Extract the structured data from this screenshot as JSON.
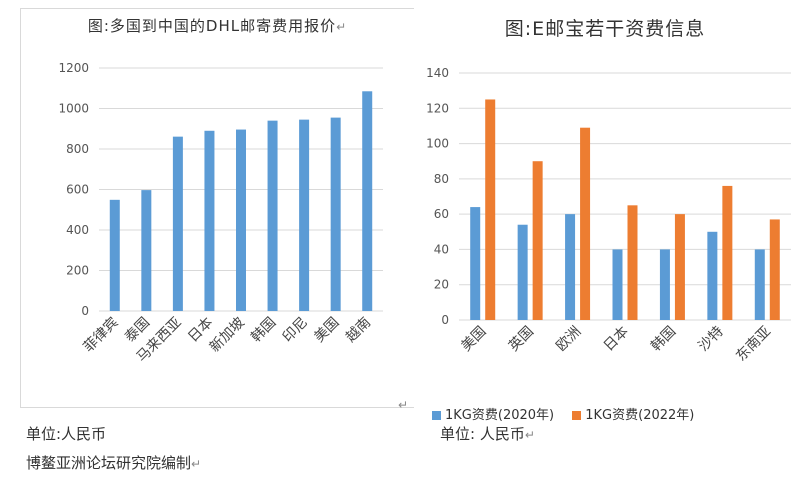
{
  "chart_data": [
    {
      "type": "bar",
      "title": "图:多国到中国的DHL邮寄费用报价",
      "categories": [
        "菲律宾",
        "泰国",
        "马来西亚",
        "日本",
        "新加坡",
        "韩国",
        "印尼",
        "美国",
        "越南"
      ],
      "series": [
        {
          "values": [
            549,
            597,
            861,
            890,
            896,
            940,
            945,
            955,
            1085
          ]
        }
      ],
      "ylim": [
        0,
        1200
      ],
      "yticks": [
        0,
        200,
        400,
        600,
        800,
        1000,
        1200
      ],
      "grid": true,
      "color": "#5b9bd5"
    },
    {
      "type": "bar",
      "title": "图:E邮宝若干资费信息",
      "categories": [
        "美国",
        "英国",
        "欧洲",
        "日本",
        "韩国",
        "沙特",
        "东南亚"
      ],
      "series": [
        {
          "name": "1KG资费(2020年)",
          "values": [
            64,
            54,
            60,
            40,
            40,
            50,
            40
          ],
          "color": "#5b9bd5"
        },
        {
          "name": "1KG资费(2022年)",
          "values": [
            125,
            90,
            109,
            65,
            60,
            76,
            57
          ],
          "color": "#ed7d31"
        }
      ],
      "ylim": [
        0,
        140
      ],
      "yticks": [
        0,
        20,
        40,
        60,
        80,
        100,
        120,
        140
      ],
      "grid": true,
      "legend": "bottom"
    }
  ],
  "notes": {
    "unit_left": "单位:人民币",
    "unit_right": "单位: 人民币",
    "source": "博鳌亚洲论坛研究院编制"
  },
  "marks": {
    "paragraph": "↵"
  }
}
